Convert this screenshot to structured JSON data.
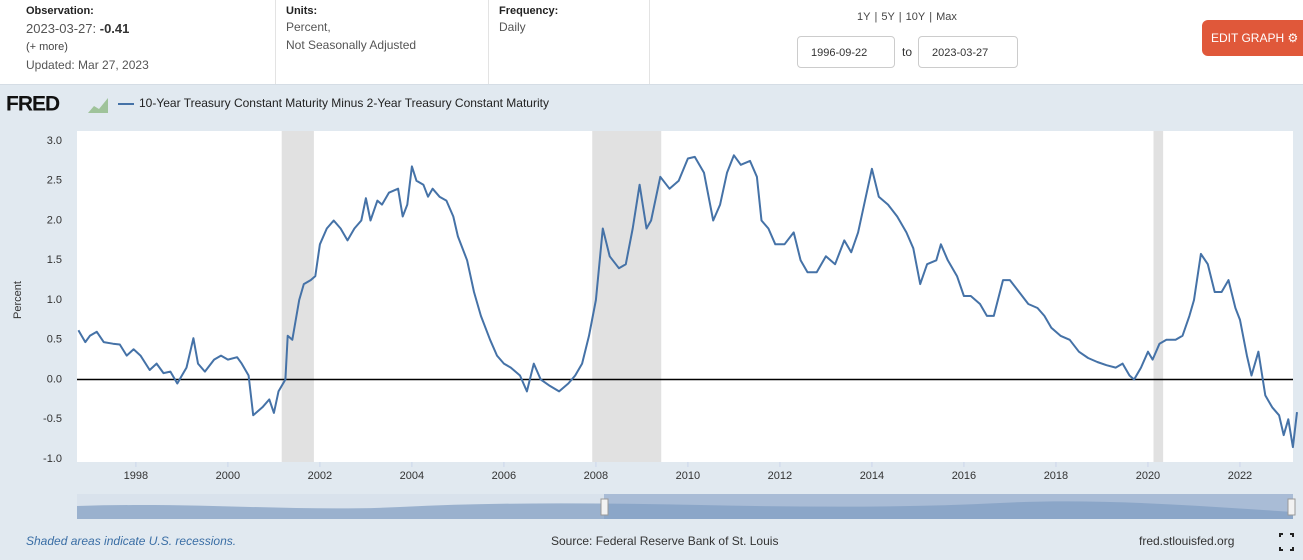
{
  "header": {
    "observation_label": "Observation:",
    "observation_date": "2023-03-27: ",
    "observation_value": "-0.41",
    "more": "(+ more)",
    "updated": "Updated: Mar 27, 2023",
    "units_label": "Units:",
    "units_line1": "Percent,",
    "units_line2": "Not Seasonally Adjusted",
    "frequency_label": "Frequency:",
    "frequency": "Daily",
    "ranges": [
      "1Y",
      "5Y",
      "10Y",
      "Max"
    ],
    "range_sep": "|",
    "start_date": "1996-09-22",
    "to": "to",
    "end_date": "2023-03-27",
    "edit_button": "EDIT GRAPH",
    "logo": "FRED"
  },
  "chart_data": {
    "type": "line",
    "title": "10-Year Treasury Constant Maturity Minus 2-Year Treasury Constant Maturity",
    "y_label": "Percent",
    "x": [
      1996.75,
      1996.9,
      1997.0,
      1997.15,
      1997.3,
      1997.5,
      1997.65,
      1997.8,
      1997.95,
      1998.1,
      1998.3,
      1998.45,
      1998.6,
      1998.75,
      1998.9,
      1999.0,
      1999.1,
      1999.25,
      1999.35,
      1999.5,
      1999.7,
      1999.85,
      2000.0,
      2000.2,
      2000.3,
      2000.45,
      2000.55,
      2000.75,
      2000.9,
      2001.0,
      2001.1,
      2001.25,
      2001.3,
      2001.4,
      2001.55,
      2001.65,
      2001.8,
      2001.9,
      2002.0,
      2002.15,
      2002.3,
      2002.45,
      2002.6,
      2002.75,
      2002.9,
      2003.0,
      2003.1,
      2003.25,
      2003.35,
      2003.5,
      2003.7,
      2003.8,
      2003.9,
      2004.0,
      2004.1,
      2004.25,
      2004.35,
      2004.45,
      2004.6,
      2004.75,
      2004.9,
      2005.0,
      2005.2,
      2005.35,
      2005.5,
      2005.7,
      2005.85,
      2006.0,
      2006.15,
      2006.35,
      2006.5,
      2006.65,
      2006.8,
      2007.0,
      2007.2,
      2007.4,
      2007.55,
      2007.7,
      2007.85,
      2008.0,
      2008.15,
      2008.3,
      2008.5,
      2008.65,
      2008.8,
      2008.95,
      2009.1,
      2009.2,
      2009.4,
      2009.6,
      2009.8,
      2010.0,
      2010.15,
      2010.35,
      2010.55,
      2010.7,
      2010.85,
      2011.0,
      2011.15,
      2011.35,
      2011.5,
      2011.6,
      2011.75,
      2011.9,
      2012.1,
      2012.3,
      2012.45,
      2012.6,
      2012.8,
      2013.0,
      2013.2,
      2013.4,
      2013.55,
      2013.7,
      2013.85,
      2014.0,
      2014.15,
      2014.35,
      2014.55,
      2014.75,
      2014.9,
      2015.05,
      2015.2,
      2015.4,
      2015.5,
      2015.65,
      2015.85,
      2016.0,
      2016.15,
      2016.35,
      2016.5,
      2016.65,
      2016.85,
      2017.0,
      2017.2,
      2017.4,
      2017.6,
      2017.75,
      2017.9,
      2018.1,
      2018.3,
      2018.5,
      2018.7,
      2018.9,
      2019.1,
      2019.3,
      2019.45,
      2019.6,
      2019.7,
      2019.85,
      2020.0,
      2020.1,
      2020.25,
      2020.4,
      2020.6,
      2020.75,
      2020.9,
      2021.0,
      2021.15,
      2021.3,
      2021.45,
      2021.6,
      2021.75,
      2021.9,
      2022.0,
      2022.15,
      2022.25,
      2022.4,
      2022.55,
      2022.7,
      2022.85,
      2022.95,
      2023.05,
      2023.15,
      2023.24
    ],
    "series": [
      {
        "name": "10-Year Treasury Constant Maturity Minus 2-Year Treasury Constant Maturity",
        "color": "#4572a7",
        "values": [
          0.62,
          0.47,
          0.55,
          0.6,
          0.47,
          0.45,
          0.44,
          0.3,
          0.38,
          0.3,
          0.12,
          0.2,
          0.08,
          0.1,
          -0.05,
          0.05,
          0.15,
          0.52,
          0.2,
          0.1,
          0.25,
          0.3,
          0.25,
          0.28,
          0.2,
          0.05,
          -0.45,
          -0.35,
          -0.25,
          -0.42,
          -0.15,
          0.0,
          0.55,
          0.5,
          1.0,
          1.2,
          1.25,
          1.3,
          1.7,
          1.9,
          2.0,
          1.9,
          1.75,
          1.9,
          2.0,
          2.28,
          2.0,
          2.25,
          2.2,
          2.35,
          2.4,
          2.05,
          2.2,
          2.68,
          2.5,
          2.45,
          2.3,
          2.4,
          2.3,
          2.25,
          2.05,
          1.8,
          1.5,
          1.1,
          0.8,
          0.5,
          0.3,
          0.2,
          0.15,
          0.05,
          -0.15,
          0.2,
          0.0,
          -0.08,
          -0.15,
          -0.05,
          0.05,
          0.2,
          0.55,
          1.0,
          1.9,
          1.55,
          1.4,
          1.45,
          1.9,
          2.45,
          1.9,
          2.0,
          2.55,
          2.4,
          2.5,
          2.78,
          2.8,
          2.6,
          2.0,
          2.2,
          2.6,
          2.82,
          2.7,
          2.75,
          2.55,
          2.0,
          1.9,
          1.7,
          1.7,
          1.85,
          1.5,
          1.35,
          1.35,
          1.55,
          1.45,
          1.75,
          1.6,
          1.85,
          2.25,
          2.65,
          2.3,
          2.2,
          2.05,
          1.85,
          1.65,
          1.2,
          1.45,
          1.5,
          1.7,
          1.5,
          1.3,
          1.05,
          1.05,
          0.95,
          0.8,
          0.8,
          1.25,
          1.25,
          1.1,
          0.95,
          0.9,
          0.8,
          0.65,
          0.55,
          0.5,
          0.35,
          0.27,
          0.22,
          0.18,
          0.15,
          0.2,
          0.05,
          0.0,
          0.15,
          0.35,
          0.25,
          0.45,
          0.5,
          0.5,
          0.55,
          0.8,
          1.0,
          1.58,
          1.45,
          1.1,
          1.1,
          1.25,
          0.9,
          0.75,
          0.3,
          0.05,
          0.35,
          -0.2,
          -0.35,
          -0.45,
          -0.7,
          -0.5,
          -0.85,
          -0.41
        ]
      }
    ],
    "recessions": [
      [
        2001.17,
        2001.87
      ],
      [
        2007.92,
        2009.42
      ],
      [
        2020.12,
        2020.33
      ]
    ],
    "xlim": [
      1996.72,
      2023.24
    ],
    "ylim": [
      -1.0,
      3.0
    ],
    "xticks": [
      1998,
      2000,
      2002,
      2004,
      2006,
      2008,
      2010,
      2012,
      2014,
      2016,
      2018,
      2020,
      2022
    ],
    "yticks": [
      {
        "value": -1.0,
        "label": "-1.0"
      },
      -0.5,
      {
        "value": 0,
        "label": "0.0"
      },
      0.5,
      {
        "value": 1.0,
        "label": "1.0"
      },
      1.5,
      {
        "value": 2.0,
        "label": "2.0"
      },
      2.5,
      {
        "value": 3.0,
        "label": "3.0"
      }
    ],
    "zero_line": true,
    "grid": false
  },
  "footer": {
    "note": "Shaded areas indicate U.S. recessions.",
    "source": "Source: Federal Reserve Bank of St. Louis",
    "site": "fred.stlouisfed.org"
  }
}
